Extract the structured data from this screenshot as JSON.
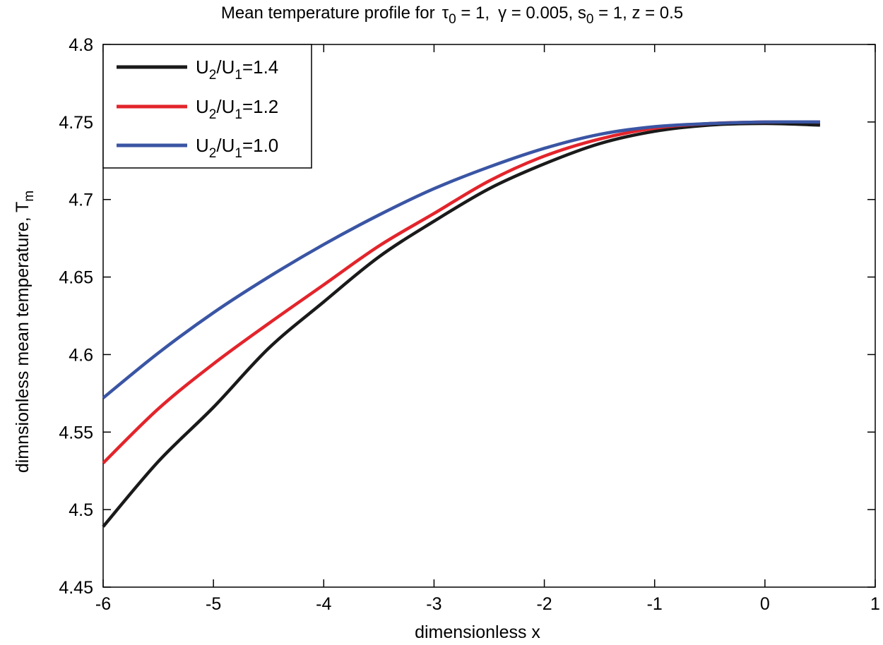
{
  "chart_data": {
    "type": "line",
    "title": {
      "prefix": "Mean temperature profile for",
      "tau_sym": "τ",
      "tau_sub": "0",
      "tau_val": " = 1,",
      "gamma_text": "γ = 0.005, s",
      "s_sub": "0",
      "rest": " = 1, z = 0.5"
    },
    "xlabel": "dimensionless x",
    "ylabel": {
      "text": "dimnsionless mean temperature, T",
      "sub": "m"
    },
    "xlim": [
      -6,
      1
    ],
    "ylim": [
      4.45,
      4.8
    ],
    "xticks": [
      -6,
      -5,
      -4,
      -3,
      -2,
      -1,
      0,
      1
    ],
    "xtick_labels": [
      "-6",
      "-5",
      "-4",
      "-3",
      "-2",
      "-1",
      "0",
      "1"
    ],
    "yticks": [
      4.45,
      4.5,
      4.55,
      4.6,
      4.65,
      4.7,
      4.75,
      4.8
    ],
    "ytick_labels": [
      "4.45",
      "4.5",
      "4.55",
      "4.6",
      "4.65",
      "4.7",
      "4.75",
      "4.8"
    ],
    "grid": false,
    "legend_position": "top-left",
    "x": [
      -6.0,
      -5.5,
      -5.0,
      -4.5,
      -4.0,
      -3.5,
      -3.0,
      -2.5,
      -2.0,
      -1.5,
      -1.0,
      -0.5,
      0.0,
      0.5
    ],
    "series": [
      {
        "name": "1.4",
        "legend": {
          "a": "U",
          "a_sub": "2",
          "b": "/U",
          "b_sub": "1",
          "c": "=1.4"
        },
        "color": "#1a1a1a",
        "values": [
          4.489,
          4.531,
          4.566,
          4.604,
          4.634,
          4.663,
          4.686,
          4.707,
          4.723,
          4.736,
          4.744,
          4.748,
          4.749,
          4.748
        ]
      },
      {
        "name": "1.2",
        "legend": {
          "a": "U",
          "a_sub": "2",
          "b": "/U",
          "b_sub": "1",
          "c": "=1.2"
        },
        "color": "#e3242b",
        "values": [
          4.53,
          4.565,
          4.594,
          4.62,
          4.645,
          4.67,
          4.691,
          4.712,
          4.728,
          4.739,
          4.746,
          4.749,
          4.75,
          4.75
        ]
      },
      {
        "name": "1.0",
        "legend": {
          "a": "U",
          "a_sub": "2",
          "b": "/U",
          "b_sub": "1",
          "c": "=1.0"
        },
        "color": "#3a55a4",
        "values": [
          4.572,
          4.601,
          4.627,
          4.65,
          4.671,
          4.69,
          4.707,
          4.721,
          4.733,
          4.742,
          4.747,
          4.749,
          4.75,
          4.75
        ]
      }
    ]
  }
}
